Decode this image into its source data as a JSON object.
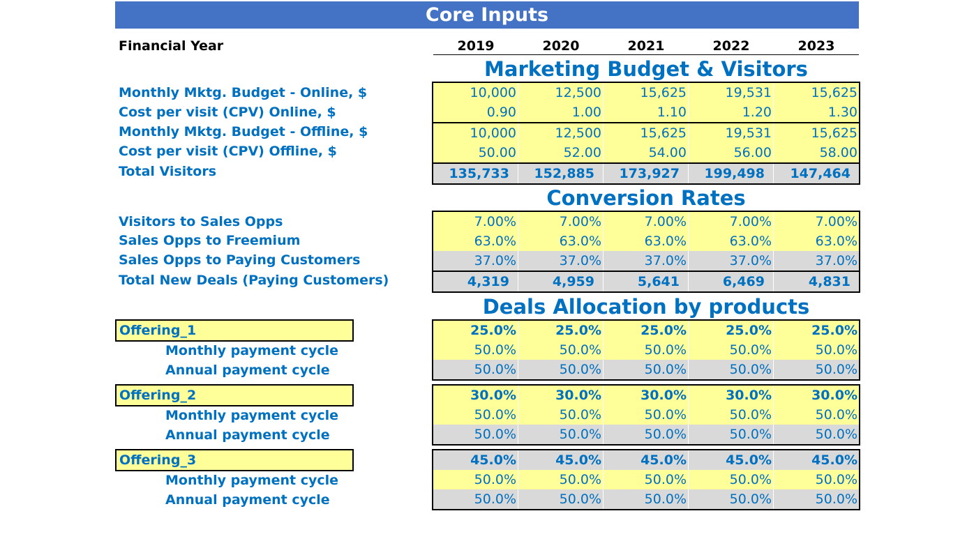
{
  "title": "Core Inputs",
  "financial_year_label": "Financial Year",
  "years": [
    "2019",
    "2020",
    "2021",
    "2022",
    "2023"
  ],
  "marketing": {
    "title": "Marketing Budget & Visitors",
    "rows": [
      {
        "label": "Monthly Mktg. Budget - Online, $",
        "values": [
          "10,000",
          "12,500",
          "15,625",
          "19,531",
          "15,625"
        ]
      },
      {
        "label": "Cost per visit (CPV) Online, $",
        "values": [
          "0.90",
          "1.00",
          "1.10",
          "1.20",
          "1.30"
        ]
      },
      {
        "label": "Monthly Mktg. Budget - Offline, $",
        "values": [
          "10,000",
          "12,500",
          "15,625",
          "19,531",
          "15,625"
        ]
      },
      {
        "label": "Cost per visit (CPV) Offline, $",
        "values": [
          "50.00",
          "52.00",
          "54.00",
          "56.00",
          "58.00"
        ]
      },
      {
        "label": "Total Visitors",
        "values": [
          "135,733",
          "152,885",
          "173,927",
          "199,498",
          "147,464"
        ]
      }
    ]
  },
  "conversion": {
    "title": "Conversion Rates",
    "rows": [
      {
        "label": "Visitors to Sales Opps",
        "values": [
          "7.00%",
          "7.00%",
          "7.00%",
          "7.00%",
          "7.00%"
        ]
      },
      {
        "label": "Sales Opps to Freemium",
        "values": [
          "63.0%",
          "63.0%",
          "63.0%",
          "63.0%",
          "63.0%"
        ]
      },
      {
        "label": "Sales Opps to Paying Customers",
        "values": [
          "37.0%",
          "37.0%",
          "37.0%",
          "37.0%",
          "37.0%"
        ]
      },
      {
        "label": "Total New Deals (Paying Customers)",
        "values": [
          "4,319",
          "4,959",
          "5,641",
          "6,469",
          "4,831"
        ]
      }
    ]
  },
  "allocation": {
    "title": "Deals Allocation by products",
    "offerings": [
      {
        "name": "Offering_1",
        "share": [
          "25.0%",
          "25.0%",
          "25.0%",
          "25.0%",
          "25.0%"
        ],
        "monthly_label": "Monthly payment cycle",
        "monthly": [
          "50.0%",
          "50.0%",
          "50.0%",
          "50.0%",
          "50.0%"
        ],
        "annual_label": "Annual payment cycle",
        "annual": [
          "50.0%",
          "50.0%",
          "50.0%",
          "50.0%",
          "50.0%"
        ]
      },
      {
        "name": "Offering_2",
        "share": [
          "30.0%",
          "30.0%",
          "30.0%",
          "30.0%",
          "30.0%"
        ],
        "monthly_label": "Monthly payment cycle",
        "monthly": [
          "50.0%",
          "50.0%",
          "50.0%",
          "50.0%",
          "50.0%"
        ],
        "annual_label": "Annual payment cycle",
        "annual": [
          "50.0%",
          "50.0%",
          "50.0%",
          "50.0%",
          "50.0%"
        ]
      },
      {
        "name": "Offering_3",
        "share": [
          "45.0%",
          "45.0%",
          "45.0%",
          "45.0%",
          "45.0%"
        ],
        "monthly_label": "Monthly payment cycle",
        "monthly": [
          "50.0%",
          "50.0%",
          "50.0%",
          "50.0%",
          "50.0%"
        ],
        "annual_label": "Annual payment cycle",
        "annual": [
          "50.0%",
          "50.0%",
          "50.0%",
          "50.0%",
          "50.0%"
        ]
      }
    ]
  },
  "colors": {
    "banner": "#4472c4",
    "label_blue": "#0070c0",
    "input_yellow": "#ffff99",
    "calc_grey": "#d9d9d9"
  }
}
